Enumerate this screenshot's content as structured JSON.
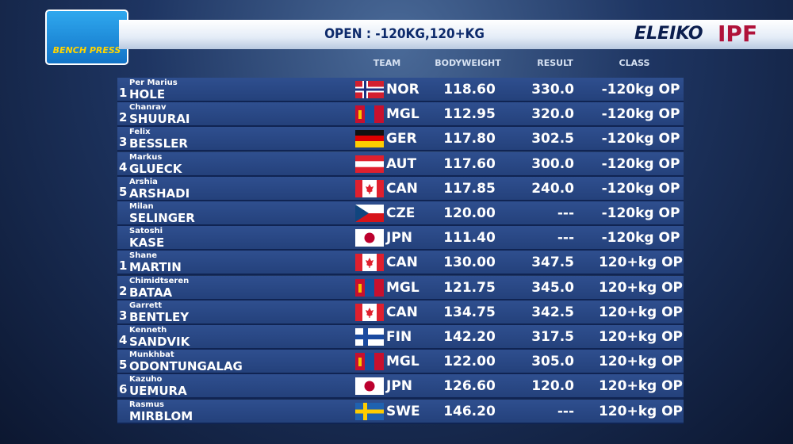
{
  "logo": "BENCH PRESS",
  "header": {
    "title": "OPEN : -120KG,120+KG",
    "brand": "ELEIKO",
    "federation": "IPF"
  },
  "table": {
    "columns": [
      "TEAM",
      "BODYWEIGHT",
      "RESULT",
      "CLASS"
    ],
    "rows": [
      {
        "rank": "1",
        "first": "Per Marius",
        "last": "HOLE",
        "team": "NOR",
        "bodyweight": "118.60",
        "result": "330.0",
        "class": "-120kg OP"
      },
      {
        "rank": "2",
        "first": "Chanrav",
        "last": "SHUURAI",
        "team": "MGL",
        "bodyweight": "112.95",
        "result": "320.0",
        "class": "-120kg OP"
      },
      {
        "rank": "3",
        "first": "Felix",
        "last": "BESSLER",
        "team": "GER",
        "bodyweight": "117.80",
        "result": "302.5",
        "class": "-120kg OP"
      },
      {
        "rank": "4",
        "first": "Markus",
        "last": "GLUECK",
        "team": "AUT",
        "bodyweight": "117.60",
        "result": "300.0",
        "class": "-120kg OP"
      },
      {
        "rank": "5",
        "first": "Arshia",
        "last": "ARSHADI",
        "team": "CAN",
        "bodyweight": "117.85",
        "result": "240.0",
        "class": "-120kg OP"
      },
      {
        "first": "Milan",
        "last": "SELINGER",
        "team": "CZE",
        "bodyweight": "120.00",
        "result": "---",
        "class": "-120kg OP"
      },
      {
        "first": "Satoshi",
        "last": "KASE",
        "team": "JPN",
        "bodyweight": "111.40",
        "result": "---",
        "class": "-120kg OP"
      },
      {
        "rank": "1",
        "first": "Shane",
        "last": "MARTIN",
        "team": "CAN",
        "bodyweight": "130.00",
        "result": "347.5",
        "class": "120+kg OP"
      },
      {
        "rank": "2",
        "first": "Chimidtseren",
        "last": "BATAA",
        "team": "MGL",
        "bodyweight": "121.75",
        "result": "345.0",
        "class": "120+kg OP"
      },
      {
        "rank": "3",
        "first": "Garrett",
        "last": "BENTLEY",
        "team": "CAN",
        "bodyweight": "134.75",
        "result": "342.5",
        "class": "120+kg OP"
      },
      {
        "rank": "4",
        "first": "Kenneth",
        "last": "SANDVIK",
        "team": "FIN",
        "bodyweight": "142.20",
        "result": "317.5",
        "class": "120+kg OP"
      },
      {
        "rank": "5",
        "first": "Munkhbat",
        "last": "ODONTUNGALAG",
        "team": "MGL",
        "bodyweight": "122.00",
        "result": "305.0",
        "class": "120+kg OP"
      },
      {
        "rank": "6",
        "first": "Kazuho",
        "last": "UEMURA",
        "team": "JPN",
        "bodyweight": "126.60",
        "result": "120.0",
        "class": "120+kg OP"
      },
      {
        "first": "Rasmus",
        "last": "MIRBLOM",
        "team": "SWE",
        "bodyweight": "146.20",
        "result": "---",
        "class": "120+kg OP"
      }
    ]
  }
}
